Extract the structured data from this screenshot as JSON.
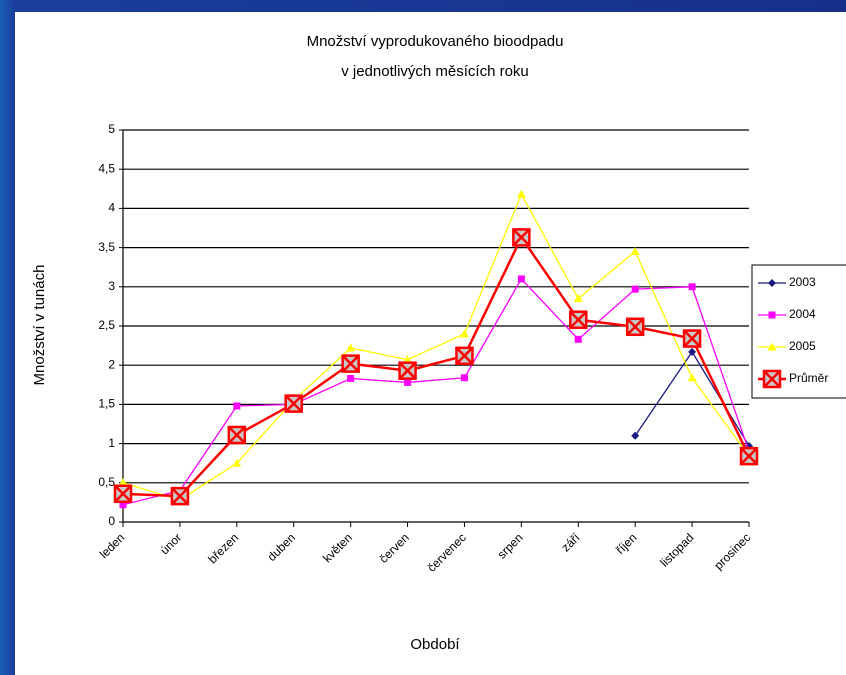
{
  "chart_data": {
    "type": "line",
    "title": "Množství vyprodukovaného bioodpadu",
    "subtitle": "v jednotlivých měsících roku",
    "x_label": "Období",
    "y_label": "Množství v tunách",
    "categories": [
      "leden",
      "únor",
      "březen",
      "duben",
      "květen",
      "červen",
      "červenec",
      "srpen",
      "září",
      "říjen",
      "listopad",
      "prosinec"
    ],
    "series": [
      {
        "name": "2003",
        "color": "#1a1a80",
        "marker": "diamond",
        "values": [
          null,
          null,
          null,
          null,
          null,
          null,
          null,
          null,
          null,
          1.1,
          2.17,
          0.97
        ]
      },
      {
        "name": "2004",
        "color": "#ff00ff",
        "marker": "square",
        "values": [
          0.22,
          0.4,
          1.48,
          1.5,
          1.83,
          1.78,
          1.84,
          3.1,
          2.33,
          2.97,
          3.0,
          0.9
        ]
      },
      {
        "name": "2005",
        "color": "#ffff00",
        "marker": "triangle",
        "values": [
          0.5,
          0.28,
          0.75,
          1.55,
          2.22,
          2.07,
          2.4,
          4.18,
          2.85,
          3.45,
          1.84,
          0.84
        ]
      },
      {
        "name": "Průměr",
        "color": "#ff0000",
        "marker": "xsquare",
        "values": [
          0.36,
          0.33,
          1.11,
          1.51,
          2.02,
          1.93,
          2.12,
          3.63,
          2.58,
          2.49,
          2.34,
          0.84
        ]
      }
    ],
    "ylim": [
      0,
      5
    ],
    "yticks": [
      0,
      {
        "value": 0.5,
        "label": "0,5"
      },
      1,
      {
        "value": 1.5,
        "label": "1,5"
      },
      2,
      {
        "value": 2.5,
        "label": "2,5"
      },
      3,
      {
        "value": 3.5,
        "label": "3,5"
      },
      4,
      {
        "value": 4.5,
        "label": "4,5"
      },
      5
    ],
    "grid": true,
    "legend": "right"
  }
}
